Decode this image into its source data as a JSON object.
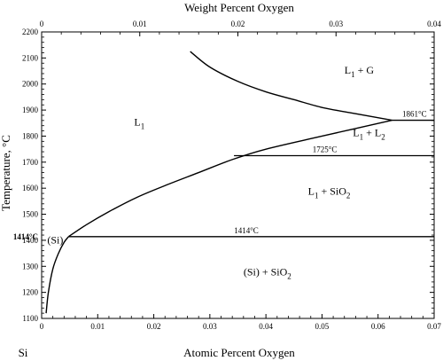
{
  "chart_data": {
    "type": "phase-diagram",
    "title": "",
    "xlabel_bottom": "Atomic Percent Oxygen",
    "xlabel_top": "Weight Percent Oxygen",
    "ylabel": "Temperature, °C",
    "corner_label": "Si",
    "xlim": [
      0,
      0.07
    ],
    "ylim": [
      1100,
      2200
    ],
    "x_top_lim": [
      0,
      0.04
    ],
    "x_ticks": [
      0,
      0.01,
      0.02,
      0.03,
      0.04,
      0.05,
      0.06,
      0.07
    ],
    "x_tick_labels": [
      "0",
      "0.01",
      "0.02",
      "0.03",
      "0.04",
      "0.05",
      "0.06",
      "0.07"
    ],
    "x_top_ticks": [
      0,
      0.01,
      0.02,
      0.03,
      0.04
    ],
    "x_top_tick_labels": [
      "0",
      "0.01",
      "0.02",
      "0.03",
      "0.04"
    ],
    "y_ticks": [
      1100,
      1200,
      1300,
      1400,
      1500,
      1600,
      1700,
      1800,
      1900,
      2000,
      2100,
      2200
    ],
    "y_tick_labels": [
      "1100",
      "1200",
      "1300",
      "1400",
      "1500",
      "1600",
      "1700",
      "1800",
      "1900",
      "2000",
      "2100",
      "2200"
    ],
    "y_special_label": "1414°C",
    "y_special_value": 1414,
    "grid": false,
    "series": [
      {
        "x": [
          0.0008,
          0.0012,
          0.002,
          0.003,
          0.004,
          0.0048
        ],
        "y": [
          1120,
          1200,
          1290,
          1350,
          1392,
          1414
        ]
      },
      {
        "x": [
          0.0048,
          0.008,
          0.012,
          0.017,
          0.022,
          0.028,
          0.034,
          0.04,
          0.05,
          0.0625
        ],
        "y": [
          1414,
          1460,
          1510,
          1565,
          1610,
          1660,
          1710,
          1750,
          1800,
          1861
        ]
      },
      {
        "x": [
          0.0265,
          0.03,
          0.035,
          0.04,
          0.045,
          0.05,
          0.055,
          0.0625
        ],
        "y": [
          2125,
          2065,
          2010,
          1970,
          1940,
          1910,
          1890,
          1861
        ]
      }
    ],
    "isotherms": [
      {
        "y": 1414,
        "x_start": 0.0048,
        "x_end": 0.07,
        "label": "1414°C"
      },
      {
        "y": 1725,
        "x_start": 0.0343,
        "x_end": 0.07,
        "label": "1725°C"
      },
      {
        "y": 1861,
        "x_start": 0.0625,
        "x_end": 0.07,
        "label": "1861°C"
      }
    ],
    "regions": [
      {
        "label": "L",
        "sub": "1",
        "rest": "",
        "x": 0.0165,
        "y": 1840
      },
      {
        "label": "L",
        "sub": "1",
        "rest": " +  G",
        "x": 0.054,
        "y": 2040
      },
      {
        "label": "L",
        "sub": "1",
        "rest": " + L",
        "sub2": "2",
        "x": 0.0555,
        "y": 1800
      },
      {
        "label": "L",
        "sub": "1",
        "rest": " + SiO",
        "sub2": "2",
        "x": 0.0475,
        "y": 1575
      },
      {
        "label": "(Si)  + SiO",
        "sub": "2",
        "rest": "",
        "x": 0.036,
        "y": 1265
      },
      {
        "label": "(Si)",
        "sub": "",
        "rest": "",
        "x": 0.001,
        "y": 1388
      }
    ]
  }
}
